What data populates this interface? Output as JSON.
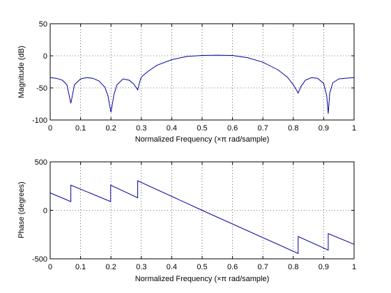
{
  "chart_data": [
    {
      "type": "line",
      "xlabel": "Normalized Frequency  (×π rad/sample)",
      "ylabel": "Magnitude (dB)",
      "xlim": [
        0,
        1
      ],
      "ylim": [
        -100,
        50
      ],
      "xticks": [
        "0",
        "0.1",
        "0.2",
        "0.3",
        "0.4",
        "0.5",
        "0.6",
        "0.7",
        "0.8",
        "0.9",
        "1"
      ],
      "yticks": [
        "-100",
        "-50",
        "0",
        "50"
      ],
      "grid": true,
      "line_color": "#0000a0",
      "series": [
        {
          "x": [
            0,
            0.02,
            0.04,
            0.055,
            0.068,
            0.08,
            0.1,
            0.12,
            0.14,
            0.16,
            0.18,
            0.19,
            0.2,
            0.21,
            0.22,
            0.24,
            0.26,
            0.275,
            0.288,
            0.295,
            0.3,
            0.32,
            0.35,
            0.4,
            0.45,
            0.5,
            0.55,
            0.6,
            0.65,
            0.7,
            0.75,
            0.78,
            0.8,
            0.81,
            0.816,
            0.825,
            0.84,
            0.86,
            0.88,
            0.9,
            0.91,
            0.915,
            0.92,
            0.93,
            0.95,
            0.97,
            1.0
          ],
          "y": [
            -34,
            -35,
            -38,
            -45,
            -74,
            -45,
            -36,
            -34,
            -35,
            -39,
            -49,
            -62,
            -88,
            -60,
            -45,
            -36,
            -38,
            -44,
            -53,
            -40,
            -33,
            -25,
            -15,
            -6,
            -1,
            0.5,
            1,
            0.5,
            -3,
            -10,
            -22,
            -33,
            -45,
            -53,
            -58,
            -48,
            -38,
            -34,
            -35,
            -43,
            -62,
            -90,
            -58,
            -42,
            -36,
            -35,
            -34
          ]
        }
      ]
    },
    {
      "type": "line",
      "xlabel": "Normalized Frequency  (×π rad/sample)",
      "ylabel": "Phase (degrees)",
      "xlim": [
        0,
        1
      ],
      "ylim": [
        -500,
        500
      ],
      "xticks": [
        "0",
        "0.1",
        "0.2",
        "0.3",
        "0.4",
        "0.5",
        "0.6",
        "0.7",
        "0.8",
        "0.9",
        "1"
      ],
      "yticks": [
        "-500",
        "0",
        "500"
      ],
      "grid": true,
      "line_color": "#0000a0",
      "series": [
        {
          "x": [
            0,
            0.068,
            0.068,
            0.199,
            0.199,
            0.288,
            0.288,
            0.5,
            0.816,
            0.816,
            0.915,
            0.915,
            1.0
          ],
          "y": [
            180,
            90,
            260,
            90,
            260,
            130,
            305,
            0,
            -445,
            -270,
            -410,
            -240,
            -350
          ]
        }
      ]
    }
  ]
}
